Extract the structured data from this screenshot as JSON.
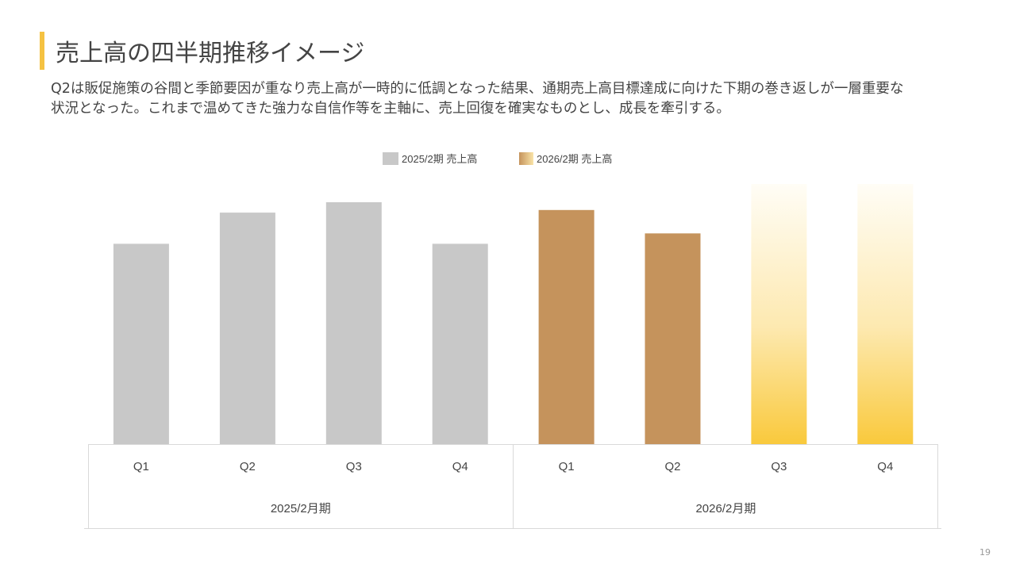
{
  "title": "売上高の四半期推移イメージ",
  "description": [
    "Q2は販促施策の谷間と季節要因が重なり売上高が一時的に低調となった結果、通期売上高目標達成に向けた下期の巻き返しが一層重要な",
    "状況となった。これまで温めてきた強力な自信作等を主軸に、売上回復を確実なものとし、成長を牽引する。"
  ],
  "page_number": "19",
  "colors": {
    "accent": "#f5c242",
    "bar_2025": "#c8c8c8",
    "bar_2026": "#c5935c",
    "forecast_top": "#fffdf6",
    "forecast_bottom": "#f9c93c"
  },
  "chart_data": {
    "type": "bar",
    "title": "",
    "legend": [
      "2025/2期 売上高",
      "2026/2期 売上高"
    ],
    "legend_position": "top-center",
    "groups": [
      {
        "label": "2025/2月期",
        "series": "2025/2期 売上高",
        "categories": [
          "Q1",
          "Q2",
          "Q3",
          "Q4"
        ],
        "values": [
          77,
          89,
          93,
          77
        ],
        "style": [
          "solid",
          "solid",
          "solid",
          "solid"
        ]
      },
      {
        "label": "2026/2月期",
        "series": "2026/2期 売上高",
        "categories": [
          "Q1",
          "Q2",
          "Q3",
          "Q4"
        ],
        "values": [
          90,
          81,
          100,
          100
        ],
        "style": [
          "solid",
          "solid",
          "forecast",
          "forecast"
        ]
      }
    ],
    "ylim": [
      0,
      100
    ],
    "y_axis_visible": false,
    "grid": false
  }
}
